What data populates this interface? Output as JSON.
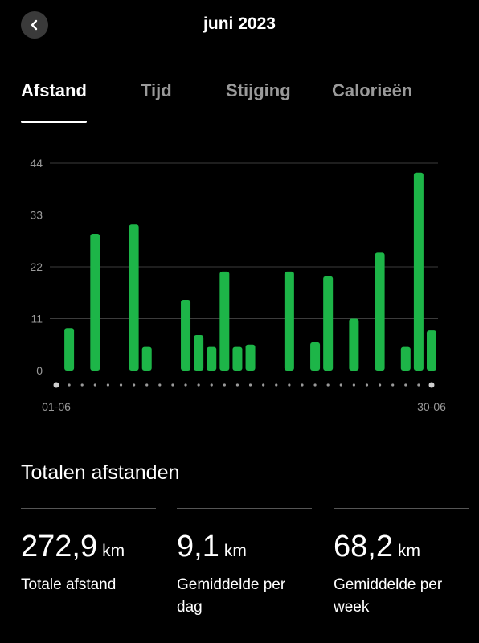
{
  "header": {
    "title": "juni 2023",
    "back_icon": "chevron-left-icon"
  },
  "tabs": [
    {
      "label": "Afstand",
      "active": true
    },
    {
      "label": "Tijd",
      "active": false
    },
    {
      "label": "Stijging",
      "active": false
    },
    {
      "label": "Calorieën",
      "active": false
    }
  ],
  "chart_data": {
    "type": "bar",
    "categories": [
      "01-06",
      "02-06",
      "03-06",
      "04-06",
      "05-06",
      "06-06",
      "07-06",
      "08-06",
      "09-06",
      "10-06",
      "11-06",
      "12-06",
      "13-06",
      "14-06",
      "15-06",
      "16-06",
      "17-06",
      "18-06",
      "19-06",
      "20-06",
      "21-06",
      "22-06",
      "23-06",
      "24-06",
      "25-06",
      "26-06",
      "27-06",
      "28-06",
      "29-06",
      "30-06"
    ],
    "values": [
      0,
      9,
      0,
      29,
      0,
      0,
      31,
      5,
      0,
      0,
      15,
      7.5,
      5,
      21,
      5,
      5.5,
      0,
      0,
      21,
      0,
      6,
      20,
      0,
      11,
      0,
      25,
      0,
      5,
      42,
      8.5
    ],
    "yticks": [
      0,
      11,
      22,
      33,
      44
    ],
    "ylim": [
      0,
      44
    ],
    "x_start_label": "01-06",
    "x_end_label": "30-06",
    "color": "#1db548"
  },
  "totals": {
    "title": "Totalen afstanden",
    "cards": [
      {
        "value": "272,9",
        "unit": "km",
        "label": "Totale afstand"
      },
      {
        "value": "9,1",
        "unit": "km",
        "label": "Gemiddelde per dag"
      },
      {
        "value": "68,2",
        "unit": "km",
        "label": "Gemiddelde per week"
      }
    ]
  }
}
